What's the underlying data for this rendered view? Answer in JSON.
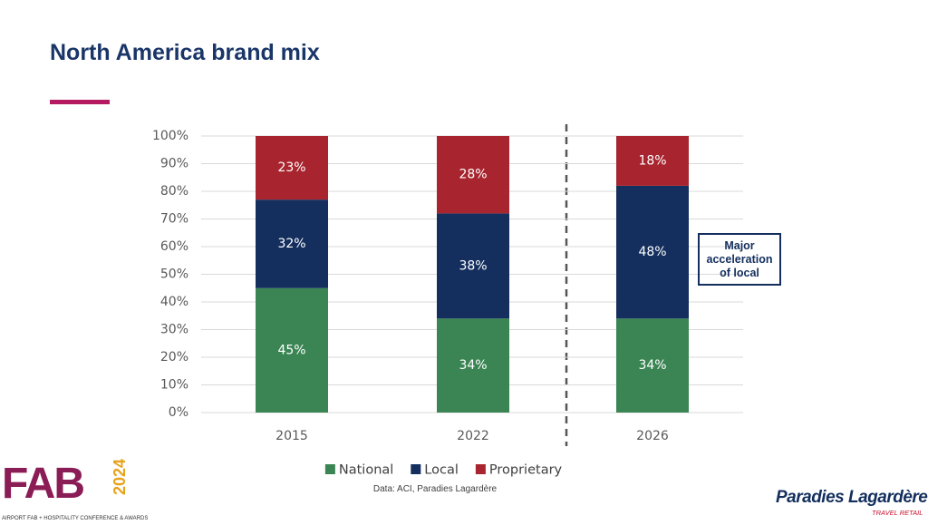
{
  "chart_data": {
    "type": "stacked_bar",
    "title": "North America brand mix",
    "categories": [
      "2015",
      "2022",
      "2026"
    ],
    "series": [
      {
        "name": "National",
        "color": "#3a8553",
        "values": [
          45,
          34,
          34
        ],
        "value_labels": [
          "45%",
          "34%",
          "34%"
        ]
      },
      {
        "name": "Local",
        "color": "#142f5e",
        "values": [
          32,
          38,
          48
        ],
        "value_labels": [
          "32%",
          "38%",
          "48%"
        ]
      },
      {
        "name": "Proprietary",
        "color": "#a8252f",
        "values": [
          23,
          28,
          18
        ],
        "value_labels": [
          "23%",
          "28%",
          "18%"
        ]
      }
    ],
    "ylim": [
      0,
      100
    ],
    "yticks": [
      {
        "value": 0,
        "label": "0%"
      },
      {
        "value": 10,
        "label": "10%"
      },
      {
        "value": 20,
        "label": "20%"
      },
      {
        "value": 30,
        "label": "30%"
      },
      {
        "value": 40,
        "label": "40%"
      },
      {
        "value": 50,
        "label": "50%"
      },
      {
        "value": 60,
        "label": "60%"
      },
      {
        "value": 70,
        "label": "70%"
      },
      {
        "value": 80,
        "label": "80%"
      },
      {
        "value": 90,
        "label": "90%"
      },
      {
        "value": 100,
        "label": "100%"
      }
    ],
    "grid": true,
    "legend": "bottom",
    "annotation": "Major acceleration of local",
    "source": "Data: ACI, Paradies Lagardère"
  },
  "logos": {
    "event": "FAB",
    "event_year": "2024",
    "event_caption": "AIRPORT FAB + HOSPITALITY CONFERENCE & AWARDS",
    "company": "Paradies Lagardère",
    "company_tagline": "TRAVEL RETAIL"
  }
}
